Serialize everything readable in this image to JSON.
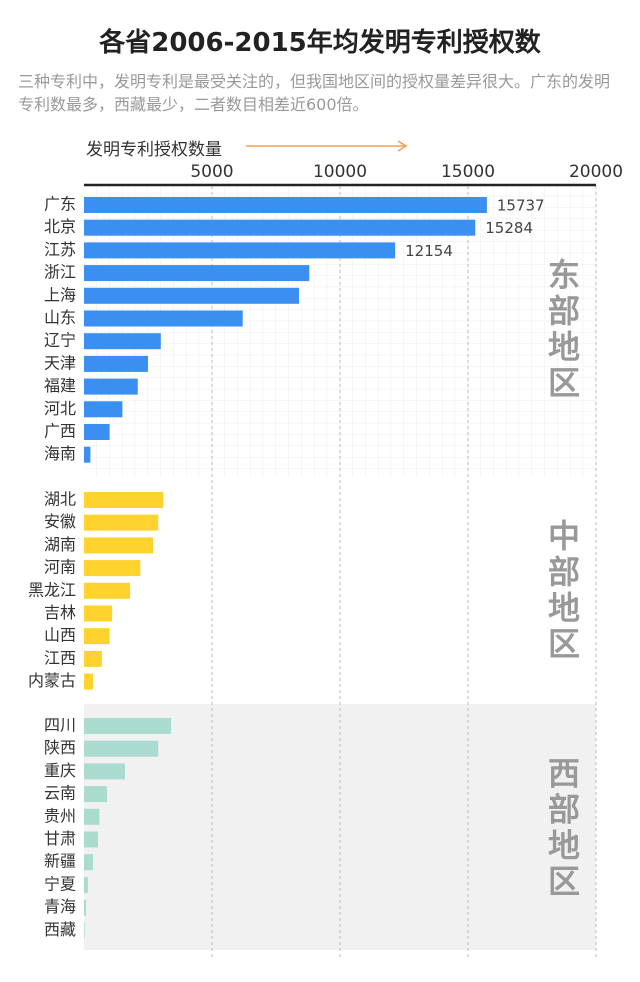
{
  "chart_data": {
    "type": "bar",
    "orientation": "horizontal",
    "title": "各省2006-2015年均发明专利授权数",
    "subtitle": "三种专利中，发明专利是最受关注的，但我国地区间的授权量差异很大。广东的发明专利数最多，西藏最少，二者数目相差近600倍。",
    "xlabel": "发明专利授权数量",
    "xlim": [
      0,
      20000
    ],
    "xticks": [
      5000,
      10000,
      15000,
      20000
    ],
    "grid": true,
    "series": [
      {
        "name": "东部地区",
        "color": "#3b8ff0",
        "categories": [
          "广东",
          "北京",
          "江苏",
          "浙江",
          "上海",
          "山东",
          "辽宁",
          "天津",
          "福建",
          "河北",
          "广西",
          "海南"
        ],
        "values": [
          15737,
          15284,
          12154,
          8800,
          8400,
          6200,
          3000,
          2500,
          2100,
          1500,
          1000,
          250
        ],
        "value_labels": [
          15737,
          15284,
          12154,
          null,
          null,
          null,
          null,
          null,
          null,
          null,
          null,
          null
        ]
      },
      {
        "name": "中部地区",
        "color": "#ffd22e",
        "categories": [
          "湖北",
          "安徽",
          "湖南",
          "河南",
          "黑龙江",
          "吉林",
          "山西",
          "江西",
          "内蒙古"
        ],
        "values": [
          3100,
          2900,
          2700,
          2200,
          1800,
          1100,
          1000,
          700,
          350
        ]
      },
      {
        "name": "西部地区",
        "color": "#a9dccf",
        "categories": [
          "四川",
          "陕西",
          "重庆",
          "云南",
          "贵州",
          "甘肃",
          "新疆",
          "宁夏",
          "青海",
          "西藏"
        ],
        "values": [
          3400,
          2900,
          1600,
          900,
          600,
          550,
          350,
          150,
          80,
          26
        ]
      }
    ]
  }
}
